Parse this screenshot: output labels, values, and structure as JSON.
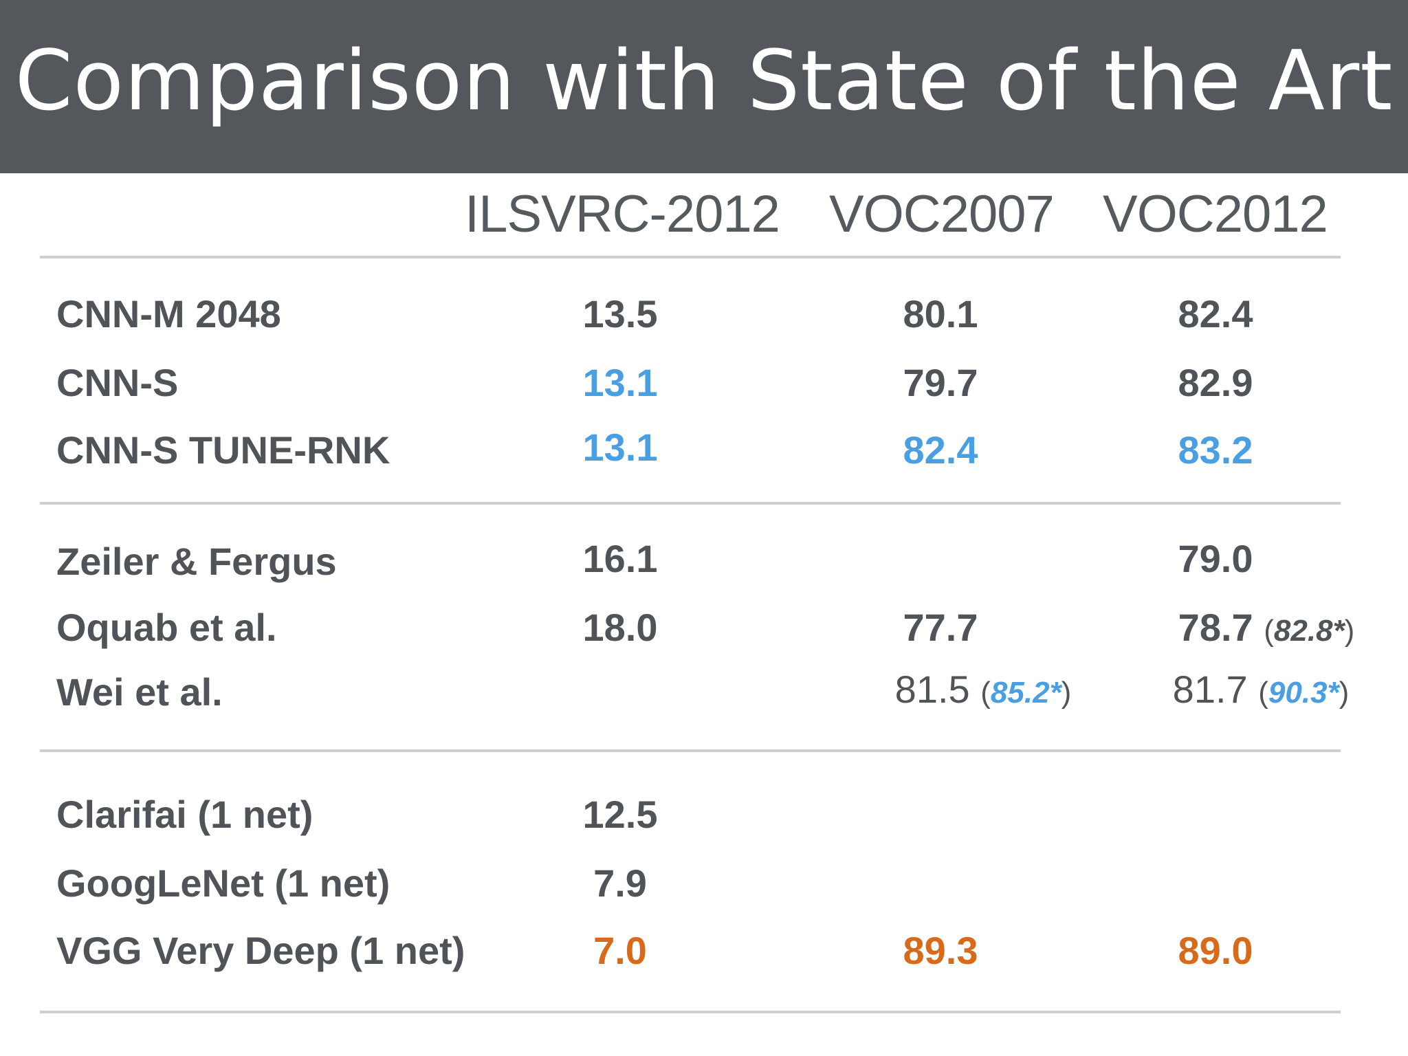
{
  "title": "Comparison with State of the Art",
  "columns": [
    "ILSVRC-2012",
    "VOC2007",
    "VOC2012"
  ],
  "colors": {
    "header_bg": "#54585d",
    "text": "#505458",
    "highlight_blue": "#4a9fe3",
    "highlight_orange": "#d86a1c",
    "rule": "#cfcfcf"
  },
  "groups": [
    {
      "rows": [
        {
          "label": "CNN-M 2048",
          "ilsvrc": "13.5",
          "voc2007": "80.1",
          "voc2012": "82.4"
        },
        {
          "label": "CNN-S",
          "ilsvrc": "13.1",
          "voc2007": "79.7",
          "voc2012": "82.9"
        },
        {
          "label": "CNN-S TUNE-RNK",
          "ilsvrc": "13.1",
          "voc2007": "82.4",
          "voc2012": "83.2"
        }
      ]
    },
    {
      "rows": [
        {
          "label": "Zeiler & Fergus",
          "ilsvrc": "16.1",
          "voc2007": "",
          "voc2012": "79.0"
        },
        {
          "label": "Oquab et al.",
          "ilsvrc": "18.0",
          "voc2007": "77.7",
          "voc2012": "78.7",
          "voc2012_extra": "82.8*"
        },
        {
          "label": "Wei et al.",
          "ilsvrc": "",
          "voc2007": "81.5",
          "voc2007_extra": "85.2*",
          "voc2012": "81.7",
          "voc2012_extra": "90.3*"
        }
      ]
    },
    {
      "rows": [
        {
          "label": "Clarifai (1 net)",
          "ilsvrc": "12.5",
          "voc2007": "",
          "voc2012": ""
        },
        {
          "label": "GoogLeNet (1 net)",
          "ilsvrc": "7.9",
          "voc2007": "",
          "voc2012": ""
        },
        {
          "label": "VGG Very Deep (1 net)",
          "ilsvrc": "7.0",
          "voc2007": "89.3",
          "voc2012": "89.0"
        }
      ]
    }
  ]
}
